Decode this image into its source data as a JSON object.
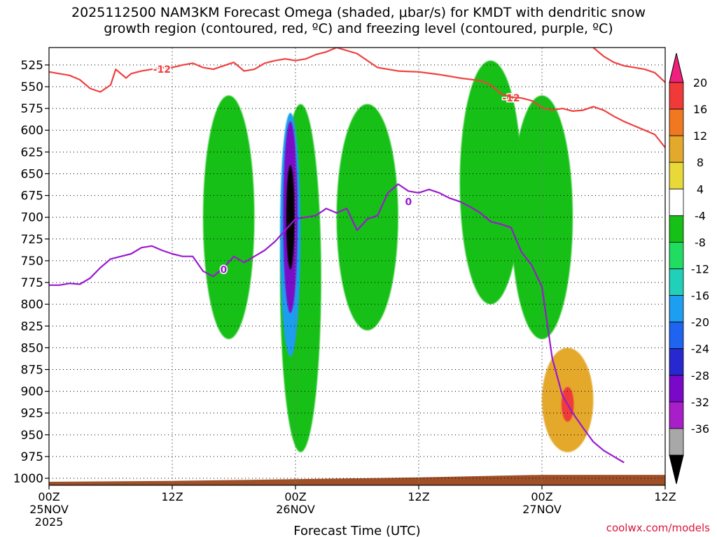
{
  "chart_data": {
    "type": "heatmap",
    "title": "2025112500 NAM3KM Forecast Omega (shaded, μbar/s) for KMDT with dendritic snow",
    "subtitle": "growth region (contoured, red, ºC) and freezing level (contoured, purple, ºC)",
    "xlabel": "Forecast Time (UTC)",
    "ylabel": "",
    "x_ticks": [
      {
        "hour": 0,
        "label": "00Z",
        "sub1": "25NOV",
        "sub2": "2025"
      },
      {
        "hour": 12,
        "label": "12Z",
        "sub1": "",
        "sub2": ""
      },
      {
        "hour": 24,
        "label": "00Z",
        "sub1": "26NOV",
        "sub2": ""
      },
      {
        "hour": 36,
        "label": "12Z",
        "sub1": "",
        "sub2": ""
      },
      {
        "hour": 48,
        "label": "00Z",
        "sub1": "27NOV",
        "sub2": ""
      },
      {
        "hour": 60,
        "label": "12Z",
        "sub1": "",
        "sub2": ""
      }
    ],
    "xlim_hours": [
      0,
      60
    ],
    "ylim_mb": [
      505,
      1008
    ],
    "y_ticks": [
      525,
      550,
      575,
      600,
      625,
      650,
      675,
      700,
      725,
      750,
      775,
      800,
      825,
      850,
      875,
      900,
      925,
      950,
      975,
      1000
    ],
    "colorbar": {
      "levels": [
        20,
        16,
        12,
        8,
        4,
        -4,
        -8,
        -12,
        -16,
        -20,
        -24,
        -28,
        -32,
        -36
      ],
      "colors": [
        "#f0207c",
        "#f03a3a",
        "#f07820",
        "#e4a82c",
        "#e8d838",
        "#ffffff",
        "#16c016",
        "#20dc60",
        "#20d0b8",
        "#1e9ef0",
        "#1e64f0",
        "#2828d0",
        "#7a08c8",
        "#a81ec8",
        "#a8a8a8",
        "#000000"
      ]
    },
    "shading_regions": [
      {
        "level": -4,
        "color": "#16c016",
        "center": [
          17.5,
          700
        ],
        "half_width_h": 2.5,
        "half_height_mb": 140
      },
      {
        "level": -4,
        "color": "#16c016",
        "center": [
          24.5,
          770
        ],
        "half_width_h": 2.0,
        "half_height_mb": 200
      },
      {
        "level": -4,
        "color": "#16c016",
        "center": [
          31,
          700
        ],
        "half_width_h": 3.0,
        "half_height_mb": 130
      },
      {
        "level": -4,
        "color": "#16c016",
        "center": [
          43,
          660
        ],
        "half_width_h": 3.0,
        "half_height_mb": 140
      },
      {
        "level": -4,
        "color": "#16c016",
        "center": [
          48,
          700
        ],
        "half_width_h": 3.0,
        "half_height_mb": 140
      },
      {
        "level": -16,
        "color": "#1e9ef0",
        "center": [
          23.5,
          720
        ],
        "half_width_h": 1.0,
        "half_height_mb": 140
      },
      {
        "level": -28,
        "color": "#7a08c8",
        "center": [
          23.5,
          700
        ],
        "half_width_h": 0.7,
        "half_height_mb": 110
      },
      {
        "level": -36,
        "color": "#000000",
        "center": [
          23.5,
          700
        ],
        "half_width_h": 0.4,
        "half_height_mb": 60
      },
      {
        "level": 8,
        "color": "#e4a82c",
        "center": [
          50.5,
          910
        ],
        "half_width_h": 2.5,
        "half_height_mb": 60
      },
      {
        "level": 16,
        "color": "#f03a3a",
        "center": [
          50.5,
          915
        ],
        "half_width_h": 0.6,
        "half_height_mb": 20
      }
    ],
    "series": [
      {
        "name": "freezing level (0ºC, purple)",
        "color": "#9a1ad0",
        "contour_label": "0",
        "label_points": [
          [
            17,
            760
          ],
          [
            35,
            682
          ]
        ],
        "points": [
          [
            0,
            778
          ],
          [
            1,
            778
          ],
          [
            2,
            776
          ],
          [
            3,
            777
          ],
          [
            4,
            770
          ],
          [
            5,
            758
          ],
          [
            6,
            748
          ],
          [
            7,
            745
          ],
          [
            8,
            742
          ],
          [
            9,
            735
          ],
          [
            10,
            733
          ],
          [
            11,
            738
          ],
          [
            12,
            742
          ],
          [
            13,
            745
          ],
          [
            14,
            745
          ],
          [
            15,
            762
          ],
          [
            16,
            768
          ],
          [
            17,
            758
          ],
          [
            18,
            745
          ],
          [
            19,
            752
          ],
          [
            20,
            745
          ],
          [
            21,
            738
          ],
          [
            22,
            728
          ],
          [
            23,
            715
          ],
          [
            24,
            702
          ],
          [
            25,
            700
          ],
          [
            26,
            698
          ],
          [
            27,
            690
          ],
          [
            28,
            695
          ],
          [
            29,
            690
          ],
          [
            30,
            715
          ],
          [
            31,
            702
          ],
          [
            32,
            698
          ],
          [
            33,
            672
          ],
          [
            34,
            662
          ],
          [
            35,
            670
          ],
          [
            36,
            672
          ],
          [
            37,
            668
          ],
          [
            38,
            672
          ],
          [
            39,
            678
          ],
          [
            40,
            682
          ],
          [
            41,
            688
          ],
          [
            42,
            695
          ],
          [
            43,
            705
          ],
          [
            44,
            708
          ],
          [
            45,
            712
          ],
          [
            46,
            740
          ],
          [
            47,
            755
          ],
          [
            48,
            780
          ],
          [
            49,
            862
          ],
          [
            50,
            905
          ],
          [
            51,
            925
          ],
          [
            52,
            942
          ],
          [
            53,
            958
          ],
          [
            54,
            968
          ],
          [
            55,
            975
          ],
          [
            56,
            982
          ]
        ]
      },
      {
        "name": "dendritic growth region (-12ºC, red), upper",
        "color": "#f04040",
        "contour_label": "-12",
        "label_points": [
          [
            11,
            530
          ],
          [
            45,
            563
          ]
        ],
        "points": [
          [
            0,
            533
          ],
          [
            2,
            537
          ],
          [
            3,
            542
          ],
          [
            4,
            552
          ],
          [
            5,
            556
          ],
          [
            6,
            548
          ],
          [
            6.5,
            530
          ],
          [
            7.5,
            540
          ],
          [
            8,
            535
          ],
          [
            9,
            532
          ],
          [
            10,
            530
          ],
          [
            11,
            528
          ],
          [
            12,
            528
          ],
          [
            13,
            525
          ],
          [
            14,
            523
          ],
          [
            15,
            528
          ],
          [
            16,
            530
          ],
          [
            17,
            526
          ],
          [
            18,
            522
          ],
          [
            19,
            532
          ],
          [
            20,
            530
          ],
          [
            21,
            523
          ],
          [
            22,
            520
          ],
          [
            23,
            518
          ],
          [
            24,
            520
          ],
          [
            25,
            518
          ],
          [
            26,
            513
          ],
          [
            27,
            510
          ],
          [
            28,
            505
          ]
        ]
      },
      {
        "name": "dendritic growth region (-12ºC, red), east",
        "color": "#f04040",
        "contour_label": "",
        "label_points": [],
        "points": [
          [
            28,
            505
          ],
          [
            30,
            512
          ],
          [
            32,
            528
          ],
          [
            34,
            532
          ],
          [
            36,
            533
          ],
          [
            38,
            536
          ],
          [
            40,
            540
          ],
          [
            42,
            543
          ],
          [
            43,
            548
          ],
          [
            44,
            558
          ],
          [
            45,
            562
          ],
          [
            46,
            563
          ],
          [
            47,
            566
          ],
          [
            48,
            574
          ],
          [
            49,
            577
          ],
          [
            50,
            575
          ],
          [
            51,
            578
          ],
          [
            52,
            577
          ],
          [
            53,
            573
          ],
          [
            54,
            577
          ],
          [
            55,
            584
          ],
          [
            56,
            590
          ],
          [
            57,
            595
          ],
          [
            58,
            600
          ],
          [
            59,
            605
          ],
          [
            60,
            620
          ]
        ]
      },
      {
        "name": "dendritic growth region (-12ºC, red), NE corner",
        "color": "#f04040",
        "contour_label": "",
        "label_points": [],
        "points": [
          [
            53,
            505
          ],
          [
            54,
            515
          ],
          [
            55,
            522
          ],
          [
            56,
            526
          ],
          [
            57,
            528
          ],
          [
            58,
            530
          ],
          [
            59,
            534
          ],
          [
            60,
            545
          ]
        ]
      }
    ],
    "terrain": {
      "color": "#a05028",
      "surface_mb": [
        [
          0,
          1004
        ],
        [
          12,
          1003
        ],
        [
          24,
          1001
        ],
        [
          36,
          999
        ],
        [
          44,
          997
        ],
        [
          48,
          996
        ],
        [
          60,
          996
        ]
      ]
    },
    "credit": "coolwx.com/models"
  }
}
